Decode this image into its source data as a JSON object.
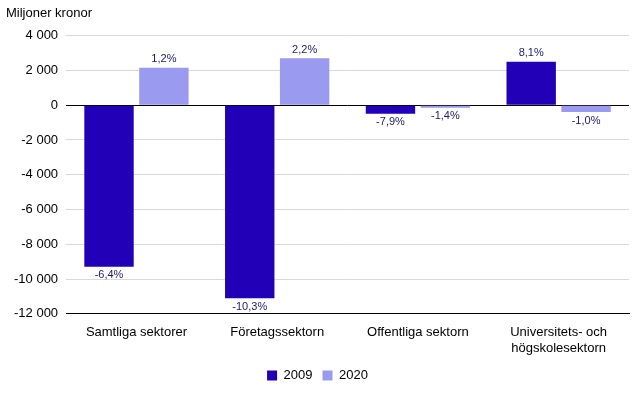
{
  "chart_data": {
    "type": "bar",
    "y_label": "Miljoner kronor",
    "categories": [
      "Samtliga sektorer",
      "Företagssektorn",
      "Offentliga sektorn",
      "Universitets- och\nhögskolesektorn"
    ],
    "series": [
      {
        "name": "2009",
        "color": "#2200b8",
        "values": [
          -9300,
          -11100,
          -500,
          2500
        ],
        "percent_labels": [
          "-6,4%",
          "-10,3%",
          "-7,9%",
          "8,1%"
        ]
      },
      {
        "name": "2020",
        "color": "#9a9af0",
        "values": [
          2150,
          2700,
          -150,
          -400
        ],
        "percent_labels": [
          "1,2%",
          "2,2%",
          "-1,4%",
          "-1,0%"
        ]
      }
    ],
    "ylim": [
      -12000,
      4000
    ],
    "yticks": [
      {
        "value": -12000,
        "label": "-12 000"
      },
      {
        "value": -10000,
        "label": "-10 000"
      },
      {
        "value": -8000,
        "label": "-8 000"
      },
      {
        "value": -6000,
        "label": "-6 000"
      },
      {
        "value": -4000,
        "label": "-4 000"
      },
      {
        "value": -2000,
        "label": "-2 000"
      },
      0,
      {
        "value": 2000,
        "label": "2 000"
      },
      {
        "value": 4000,
        "label": "4 000"
      }
    ],
    "grid": true,
    "legend": "bottom"
  }
}
